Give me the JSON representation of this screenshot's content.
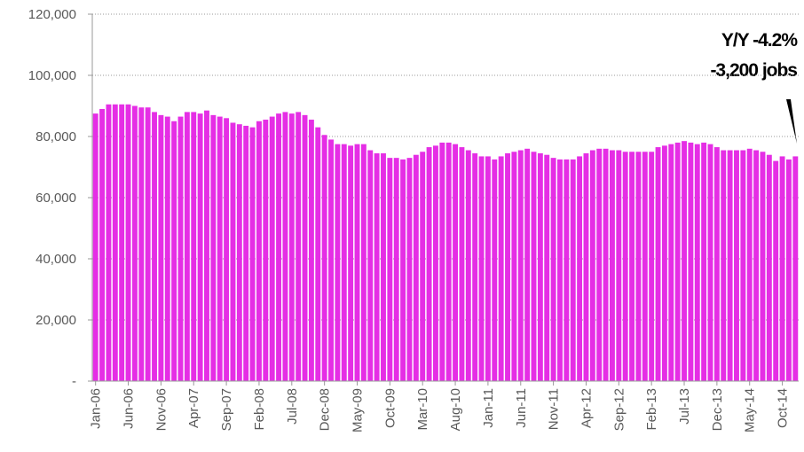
{
  "chart_data": {
    "type": "bar",
    "categories": [
      "Jan-06",
      null,
      null,
      null,
      null,
      "Jun-06",
      null,
      null,
      null,
      null,
      "Nov-06",
      null,
      null,
      null,
      null,
      "Apr-07",
      null,
      null,
      null,
      null,
      "Sep-07",
      null,
      null,
      null,
      null,
      "Feb-08",
      null,
      null,
      null,
      null,
      "Jul-08",
      null,
      null,
      null,
      null,
      "Dec-08",
      null,
      null,
      null,
      null,
      "May-09",
      null,
      null,
      null,
      null,
      "Oct-09",
      null,
      null,
      null,
      null,
      "Mar-10",
      null,
      null,
      null,
      null,
      "Aug-10",
      null,
      null,
      null,
      null,
      "Jan-11",
      null,
      null,
      null,
      null,
      "Jun-11",
      null,
      null,
      null,
      null,
      "Nov-11",
      null,
      null,
      null,
      null,
      "Apr-12",
      null,
      null,
      null,
      null,
      "Sep-12",
      null,
      null,
      null,
      null,
      "Feb-13",
      null,
      null,
      null,
      null,
      "Jul-13",
      null,
      null,
      null,
      null,
      "Dec-13",
      null,
      null,
      null,
      null,
      "May-14",
      null,
      null,
      null,
      null,
      "Oct-14",
      null,
      null
    ],
    "values": [
      87500,
      89000,
      90500,
      90500,
      90500,
      90500,
      90000,
      89500,
      89500,
      88000,
      87000,
      86500,
      85000,
      86500,
      88000,
      88000,
      87500,
      88500,
      87000,
      86500,
      86000,
      84500,
      84000,
      83500,
      83000,
      85000,
      85500,
      86500,
      87500,
      88000,
      87500,
      88000,
      87000,
      85500,
      83000,
      80500,
      79000,
      77500,
      77500,
      77000,
      77500,
      77500,
      75500,
      74500,
      74500,
      73000,
      73000,
      72500,
      73000,
      74000,
      75000,
      76500,
      77000,
      78000,
      78000,
      77500,
      76500,
      75500,
      74500,
      73500,
      73500,
      72500,
      73500,
      74500,
      75000,
      75500,
      76000,
      75000,
      74500,
      74000,
      73000,
      72500,
      72500,
      72500,
      73500,
      74500,
      75500,
      76000,
      76000,
      75500,
      75500,
      75000,
      75000,
      75000,
      75000,
      75000,
      76500,
      77000,
      77500,
      78000,
      78500,
      78000,
      77500,
      78000,
      77500,
      76500,
      75500,
      75500,
      75500,
      75500,
      76000,
      75500,
      75000,
      74000,
      72000,
      73500,
      72500,
      73500
    ],
    "color": "#e52ee5",
    "ylim": [
      0,
      120000
    ],
    "yticks": [
      {
        "value": 0,
        "label": "-"
      },
      {
        "value": 20000,
        "label": "20,000"
      },
      {
        "value": 40000,
        "label": "40,000"
      },
      {
        "value": 60000,
        "label": "60,000"
      },
      {
        "value": 80000,
        "label": "80,000"
      },
      {
        "value": 100000,
        "label": "100,000"
      },
      {
        "value": 120000,
        "label": "120,000"
      }
    ],
    "grid": true,
    "annotations": [
      "Y/Y  -4.2%",
      "-3,200 jobs"
    ]
  }
}
